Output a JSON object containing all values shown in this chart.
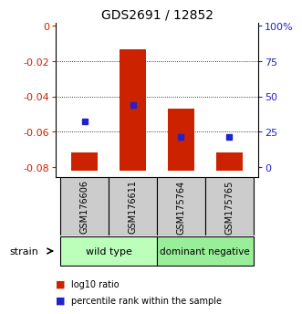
{
  "title": "GDS2691 / 12852",
  "samples": [
    "GSM176606",
    "GSM176611",
    "GSM175764",
    "GSM175765"
  ],
  "group1_name": "wild type",
  "group1_color": "#bbffbb",
  "group2_name": "dominant negative",
  "group2_color": "#99ee99",
  "bar_bottom": -0.082,
  "bar_tops": [
    -0.072,
    -0.013,
    -0.047,
    -0.072
  ],
  "blue_y": [
    -0.054,
    -0.045,
    -0.063,
    -0.063
  ],
  "ylim": [
    -0.086,
    0.002
  ],
  "yticks": [
    0,
    -0.02,
    -0.04,
    -0.06,
    -0.08
  ],
  "ytick_labels_left": [
    "0",
    "-0.02",
    "-0.04",
    "-0.06",
    "-0.08"
  ],
  "ytick_labels_right": [
    "100%",
    "75",
    "50",
    "25",
    "0"
  ],
  "bar_color": "#cc2200",
  "blue_color": "#2222cc",
  "label_color_left": "#cc2200",
  "label_color_right": "#2222cc",
  "strain_label": "strain",
  "legend_red": "log10 ratio",
  "legend_blue": "percentile rank within the sample",
  "bar_width": 0.55,
  "sample_label_bg": "#cccccc",
  "sample_label_fontsize": 7
}
